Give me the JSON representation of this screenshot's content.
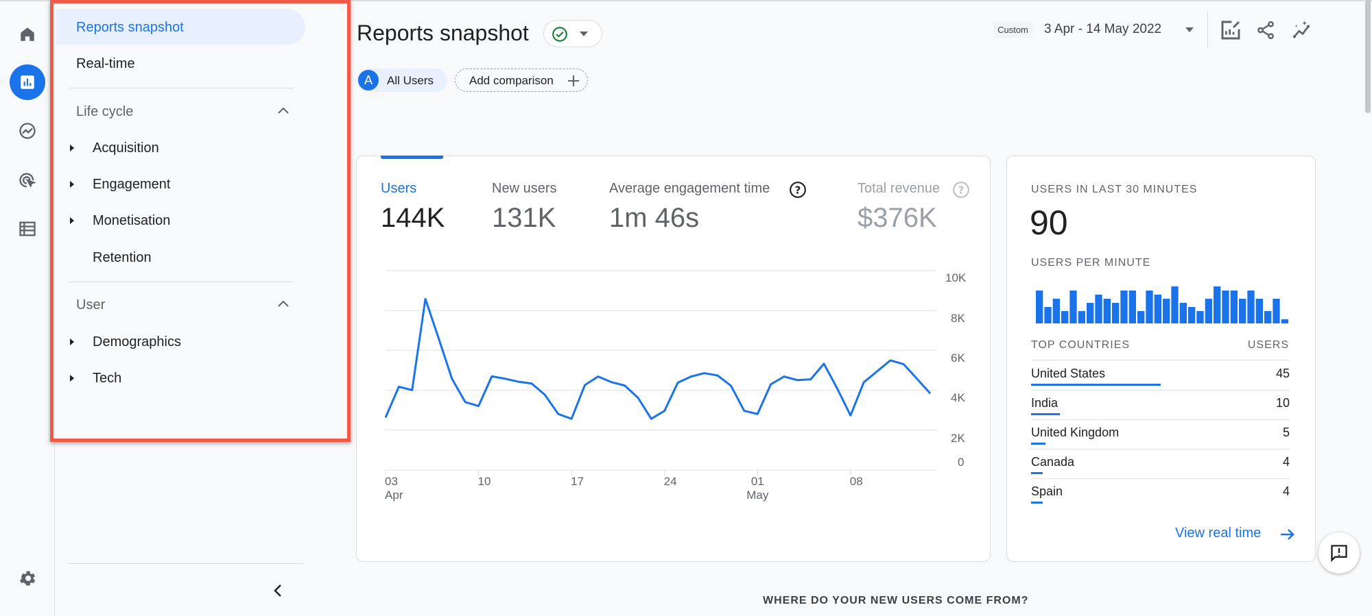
{
  "rail": {
    "icons": [
      "home-icon",
      "reports-icon",
      "explore-icon",
      "advertising-icon",
      "configure-icon",
      "settings-icon"
    ]
  },
  "nav": {
    "reports_snapshot": "Reports snapshot",
    "realtime": "Real-time",
    "lifecycle": {
      "title": "Life cycle",
      "items": [
        "Acquisition",
        "Engagement",
        "Monetisation",
        "Retention"
      ]
    },
    "user": {
      "title": "User",
      "items": [
        "Demographics",
        "Tech"
      ]
    }
  },
  "header": {
    "title": "Reports snapshot",
    "date_badge": "Custom",
    "date_range": "3 Apr - 14 May 2022",
    "segment_letter": "A",
    "segment": "All Users",
    "add_comparison": "Add comparison"
  },
  "metrics": [
    {
      "label": "Users",
      "value": "144K"
    },
    {
      "label": "New users",
      "value": "131K"
    },
    {
      "label": "Average engagement time",
      "value": "1m 46s"
    },
    {
      "label": "Total revenue",
      "value": "$376K"
    }
  ],
  "chart_data": {
    "type": "line",
    "x_tick_labels": [
      {
        "day": "03",
        "month": "Apr"
      },
      {
        "day": "10",
        "month": ""
      },
      {
        "day": "17",
        "month": ""
      },
      {
        "day": "24",
        "month": ""
      },
      {
        "day": "01",
        "month": "May"
      },
      {
        "day": "08",
        "month": ""
      }
    ],
    "y_tick_labels": [
      "10K",
      "8K",
      "6K",
      "4K",
      "2K",
      "0"
    ],
    "ylim": [
      0,
      10000
    ],
    "x_start": "2022-04-03",
    "x_end": "2022-05-14",
    "color": "#1a73e8",
    "grid": true,
    "values": [
      2630,
      4180,
      4010,
      8580,
      6600,
      4580,
      3410,
      3210,
      4700,
      4580,
      4430,
      4340,
      3770,
      2810,
      2570,
      4260,
      4690,
      4410,
      4240,
      3630,
      2570,
      2970,
      4380,
      4690,
      4860,
      4740,
      4230,
      2970,
      2810,
      4300,
      4690,
      4510,
      4550,
      5330,
      4090,
      2740,
      4400,
      4950,
      5500,
      5310,
      4580,
      3840
    ]
  },
  "realtime": {
    "title": "USERS IN LAST 30 MINUTES",
    "count": "90",
    "per_minute_label": "USERS PER MINUTE",
    "per_minute": [
      8,
      4,
      6,
      3,
      8,
      3,
      5,
      7,
      6,
      5,
      8,
      8,
      3,
      8,
      7,
      6,
      9,
      5,
      4,
      3,
      6,
      9,
      8,
      8,
      6,
      8,
      6,
      3,
      6,
      1
    ],
    "countries_header": "TOP COUNTRIES",
    "users_header": "USERS",
    "countries": [
      {
        "name": "United States",
        "users": "45",
        "value": 45
      },
      {
        "name": "India",
        "users": "10",
        "value": 10
      },
      {
        "name": "United Kingdom",
        "users": "5",
        "value": 5
      },
      {
        "name": "Canada",
        "users": "4",
        "value": 4
      },
      {
        "name": "Spain",
        "users": "4",
        "value": 4
      }
    ],
    "view_link": "View real time"
  },
  "section_heading": "WHERE DO YOUR NEW USERS COME FROM?",
  "colors": {
    "accent": "#1a73e8",
    "highlight": "#e8f0fe",
    "annotation_box": "#f05a47",
    "success": "#188038"
  }
}
